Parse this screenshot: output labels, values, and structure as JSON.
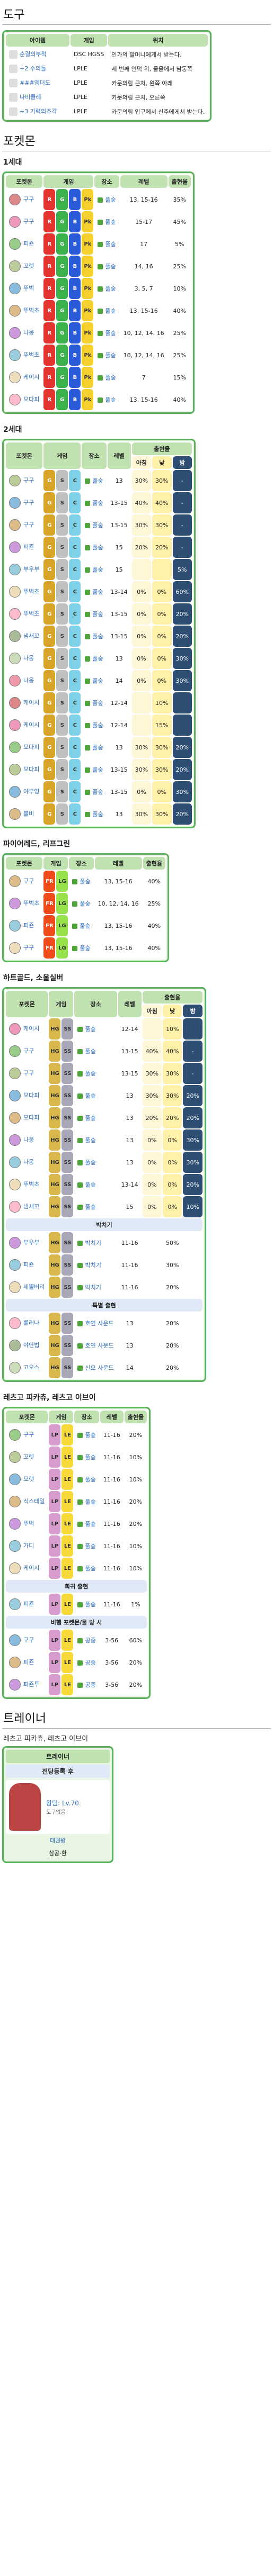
{
  "tools_heading": "도구",
  "tools_headers": [
    "아이템",
    "게임",
    "위치"
  ],
  "tools": [
    {
      "item": "순결의부적",
      "games": "DSC HGSS",
      "loc": "인가의 할머니에게서 받는다."
    },
    {
      "item": "+2 수의돌",
      "games": "LPLE",
      "loc": "세 번째 언덕 위, 물을에서 남동쪽"
    },
    {
      "item": "###엠더도",
      "games": "LPLE",
      "loc": "카문의림 근처, 왼쪽 아래"
    },
    {
      "item": "나비클레",
      "games": "LPLE",
      "loc": "카문의림 근처, 오른쪽"
    },
    {
      "item": "+3 기력의조각",
      "games": "LPLE",
      "loc": "카문의림 입구에서 신주에게서 받는다."
    }
  ],
  "pokemon_heading": "포켓몬",
  "gen1": {
    "title": "1세대",
    "headers": [
      "포켓몬",
      "게임",
      "장소",
      "레벨",
      "출현율"
    ],
    "rows": [
      {
        "name": "구구",
        "versions": [
          "R",
          "G",
          "B",
          "Pk"
        ],
        "place": "풀숲",
        "level": "13, 15-16",
        "rate": "35%"
      },
      {
        "name": "구구",
        "versions": [
          "R",
          "G",
          "B",
          "Pk"
        ],
        "place": "풀숲",
        "level": "15-17",
        "rate": "45%"
      },
      {
        "name": "피죤",
        "versions": [
          "R",
          "G",
          "B",
          "Pk"
        ],
        "place": "풀숲",
        "level": "17",
        "rate": "5%"
      },
      {
        "name": "꼬렛",
        "versions": [
          "R",
          "G",
          "B",
          "Pk"
        ],
        "place": "풀숲",
        "level": "14, 16",
        "rate": "25%"
      },
      {
        "name": "뚜벅",
        "versions": [
          "R",
          "G",
          "B",
          "Pk"
        ],
        "place": "풀숲",
        "level": "3, 5, 7",
        "rate": "10%"
      },
      {
        "name": "뚜벅초",
        "versions": [
          "R",
          "G",
          "B",
          "Pk"
        ],
        "place": "풀숲",
        "level": "13, 15-16",
        "rate": "40%"
      },
      {
        "name": "나옹",
        "versions": [
          "R",
          "G",
          "B",
          "Pk"
        ],
        "place": "풀숲",
        "level": "10, 12, 14, 16",
        "rate": "25%"
      },
      {
        "name": "뚜벅초",
        "versions": [
          "R",
          "G",
          "B",
          "Pk"
        ],
        "place": "풀숲",
        "level": "10, 12, 14, 16",
        "rate": "25%"
      },
      {
        "name": "케이시",
        "versions": [
          "R",
          "G",
          "B",
          "Pk"
        ],
        "place": "풀숲",
        "level": "7",
        "rate": "15%"
      },
      {
        "name": "모다피",
        "versions": [
          "R",
          "G",
          "B",
          "Pk"
        ],
        "place": "풀숲",
        "level": "13, 15-16",
        "rate": "40%"
      }
    ]
  },
  "gen2": {
    "title": "2세대",
    "headers": [
      "포켓몬",
      "게임",
      "장소",
      "레벨",
      "출현율"
    ],
    "tod": [
      "아침",
      "낮",
      "밤"
    ],
    "rows": [
      {
        "name": "구구",
        "place": "풀숲",
        "level": "13",
        "m": "30%",
        "d": "30%",
        "n": "-"
      },
      {
        "name": "구구",
        "place": "풀숲",
        "level": "13-15",
        "m": "40%",
        "d": "40%",
        "n": "-"
      },
      {
        "name": "구구",
        "place": "풀숲",
        "level": "13-15",
        "m": "30%",
        "d": "30%",
        "n": "-"
      },
      {
        "name": "피죤",
        "place": "풀숲",
        "level": "15",
        "m": "20%",
        "d": "20%",
        "n": "-"
      },
      {
        "name": "부우부",
        "place": "풀숲",
        "level": "15",
        "m": "",
        "d": "",
        "n": "5%"
      },
      {
        "name": "뚜벅초",
        "place": "풀숲",
        "level": "13-14",
        "m": "0%",
        "d": "0%",
        "n": "60%"
      },
      {
        "name": "뚜벅초",
        "place": "풀숲",
        "level": "13-15",
        "m": "0%",
        "d": "0%",
        "n": "20%"
      },
      {
        "name": "냄새꼬",
        "place": "풀숲",
        "level": "13-15",
        "m": "0%",
        "d": "0%",
        "n": "20%"
      },
      {
        "name": "나옹",
        "place": "풀숲",
        "level": "13",
        "m": "0%",
        "d": "0%",
        "n": "30%"
      },
      {
        "name": "나옹",
        "place": "풀숲",
        "level": "14",
        "m": "0%",
        "d": "0%",
        "n": "30%"
      },
      {
        "name": "케이시",
        "place": "풀숲",
        "level": "12-14",
        "m": "",
        "d": "10%",
        "n": ""
      },
      {
        "name": "케이시",
        "place": "풀숲",
        "level": "12-14",
        "m": "",
        "d": "15%",
        "n": ""
      },
      {
        "name": "모다피",
        "place": "풀숲",
        "level": "13",
        "m": "30%",
        "d": "30%",
        "n": "20%"
      },
      {
        "name": "모다피",
        "place": "풀숲",
        "level": "13-15",
        "m": "30%",
        "d": "30%",
        "n": "20%"
      },
      {
        "name": "야부엉",
        "place": "풀숲",
        "level": "13-15",
        "m": "0%",
        "d": "0%",
        "n": "30%"
      },
      {
        "name": "볼비",
        "place": "풀숲",
        "level": "13",
        "m": "30%",
        "d": "30%",
        "n": "20%"
      }
    ]
  },
  "gen3": {
    "title": "파이어레드, 리프그린",
    "headers": [
      "포켓몬",
      "게임",
      "장소",
      "레벨",
      "출현율"
    ],
    "rows": [
      {
        "name": "구구",
        "place": "풀숲",
        "level": "13, 15-16",
        "rate": "40%"
      },
      {
        "name": "뚜벅초",
        "place": "풀숲",
        "level": "10, 12, 14, 16",
        "rate": "25%"
      },
      {
        "name": "피죤",
        "place": "풀숲",
        "level": "13, 15-16",
        "rate": "40%"
      },
      {
        "name": "구구",
        "place": "풀숲",
        "level": "13, 15-16",
        "rate": "40%"
      }
    ]
  },
  "gen4": {
    "title": "하트골드, 소울실버",
    "headers": [
      "포켓몬",
      "게임",
      "장소",
      "레벨",
      "출현율"
    ],
    "tod": [
      "아침",
      "낮",
      "밤"
    ],
    "rows": [
      {
        "name": "케이시",
        "place": "풀숲",
        "level": "12-14",
        "m": "",
        "d": "10%",
        "n": ""
      },
      {
        "name": "구구",
        "place": "풀숲",
        "level": "13-15",
        "m": "40%",
        "d": "40%",
        "n": "-"
      },
      {
        "name": "구구",
        "place": "풀숲",
        "level": "13-15",
        "m": "30%",
        "d": "30%",
        "n": "-"
      },
      {
        "name": "모다피",
        "place": "풀숲",
        "level": "13",
        "m": "30%",
        "d": "30%",
        "n": "20%"
      },
      {
        "name": "모다피",
        "place": "풀숲",
        "level": "13",
        "m": "20%",
        "d": "20%",
        "n": "20%"
      },
      {
        "name": "나옹",
        "place": "풀숲",
        "level": "13",
        "m": "0%",
        "d": "0%",
        "n": "30%"
      },
      {
        "name": "나옹",
        "place": "풀숲",
        "level": "13",
        "m": "0%",
        "d": "0%",
        "n": "30%"
      },
      {
        "name": "뚜벅초",
        "place": "풀숲",
        "level": "13-14",
        "m": "0%",
        "d": "0%",
        "n": "20%"
      },
      {
        "name": "냄새꼬",
        "place": "풀숲",
        "level": "15",
        "m": "0%",
        "d": "0%",
        "n": "10%"
      }
    ],
    "sub1": "박치기",
    "rows_b": [
      {
        "name": "부우부",
        "place": "박치기",
        "level": "11-16",
        "rate": "50%"
      },
      {
        "name": "피죤",
        "place": "박치기",
        "level": "11-16",
        "rate": "30%"
      },
      {
        "name": "세뿔버리",
        "place": "박치기",
        "level": "11-16",
        "rate": "20%"
      }
    ],
    "sub2": "특별 출현",
    "rows_c": [
      {
        "name": "롤러나",
        "place": "호연 사운드",
        "level": "13",
        "rate": "20%"
      },
      {
        "name": "야단법",
        "place": "호연 사운드",
        "level": "13",
        "rate": "20%"
      },
      {
        "name": "고오스",
        "place": "신오 사운드",
        "level": "14",
        "rate": "20%"
      }
    ]
  },
  "gen7": {
    "title": "레츠고 피카츄, 레츠고 이브이",
    "headers": [
      "포켓몬",
      "게임",
      "장소",
      "레벨",
      "출현율"
    ],
    "rows": [
      {
        "name": "구구",
        "place": "풀숲",
        "level": "11-16",
        "rate": "20%"
      },
      {
        "name": "꼬렛",
        "place": "풀숲",
        "level": "11-16",
        "rate": "10%"
      },
      {
        "name": "모랫",
        "place": "풀숲",
        "level": "11-16",
        "rate": "10%"
      },
      {
        "name": "식스테일",
        "place": "풀숲",
        "level": "11-16",
        "rate": "20%"
      },
      {
        "name": "뚜벅",
        "place": "풀숲",
        "level": "11-16",
        "rate": "20%"
      },
      {
        "name": "가디",
        "place": "풀숲",
        "level": "11-16",
        "rate": "10%"
      },
      {
        "name": "케이시",
        "place": "풀숲",
        "level": "11-16",
        "rate": "10%"
      }
    ],
    "sub1": "희귀 출현",
    "rows_b": [
      {
        "name": "피죤",
        "place": "풀숲",
        "level": "11-16",
        "rate": "1%"
      }
    ],
    "sub2": "비행 포켓몬/물 방 시",
    "rows_c": [
      {
        "name": "구구",
        "place": "공중",
        "level": "3-56",
        "rate": "60%"
      },
      {
        "name": "피죤",
        "place": "공중",
        "level": "3-56",
        "rate": "20%"
      },
      {
        "name": "피죤투",
        "place": "공중",
        "level": "3-56",
        "rate": "20%"
      }
    ]
  },
  "trainer_heading": "트레이너",
  "trainer_note": "레츠고 피카츄, 레츠고 이브이",
  "trainer": {
    "header": "트레이너",
    "sub": "전당등록 후",
    "name": "태권왕",
    "extra": "삼공·환",
    "pokemon": "왕팀: Lv.70",
    "item": "도구없음"
  }
}
